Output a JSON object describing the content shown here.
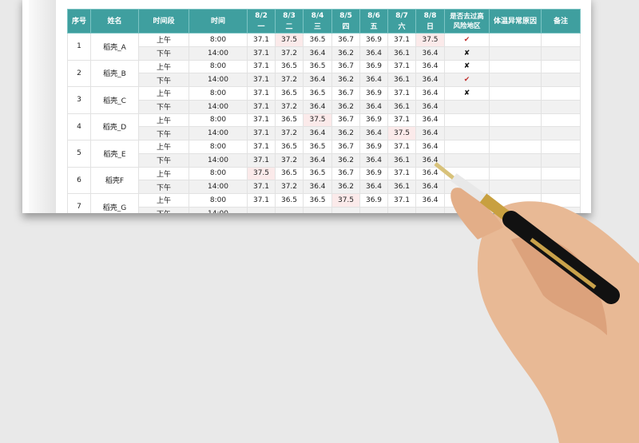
{
  "headers": {
    "no": "序号",
    "name": "姓名",
    "period": "时间段",
    "time": "时间",
    "dates": [
      {
        "date": "8/2",
        "weekday": "一"
      },
      {
        "date": "8/3",
        "weekday": "二"
      },
      {
        "date": "8/4",
        "weekday": "三"
      },
      {
        "date": "8/5",
        "weekday": "四"
      },
      {
        "date": "8/6",
        "weekday": "五"
      },
      {
        "date": "8/7",
        "weekday": "六"
      },
      {
        "date": "8/8",
        "weekday": "日"
      }
    ],
    "risk": "是否去过高风险地区",
    "reason": "体温异常原因",
    "note": "备注"
  },
  "periods": {
    "am": "上午",
    "pm": "下午",
    "am_time": "8:00",
    "pm_time": "14:00"
  },
  "highlight_color": "#fbeaea",
  "header_color": "#3f9f9f",
  "symbols": {
    "yes": "✔",
    "no": "✘"
  },
  "rows": [
    {
      "no": "1",
      "name": "稻壳_A",
      "am": [
        "37.1",
        "37.5",
        "36.5",
        "36.7",
        "36.9",
        "37.1",
        "37.5"
      ],
      "pm": [
        "37.1",
        "37.2",
        "36.4",
        "36.2",
        "36.4",
        "36.1",
        "36.4"
      ],
      "am_risk": "yes",
      "pm_risk": "no"
    },
    {
      "no": "2",
      "name": "稻壳_B",
      "am": [
        "37.1",
        "36.5",
        "36.5",
        "36.7",
        "36.9",
        "37.1",
        "36.4"
      ],
      "pm": [
        "37.1",
        "37.2",
        "36.4",
        "36.2",
        "36.4",
        "36.1",
        "36.4"
      ],
      "am_risk": "no",
      "pm_risk": "yes"
    },
    {
      "no": "3",
      "name": "稻壳_C",
      "am": [
        "37.1",
        "36.5",
        "36.5",
        "36.7",
        "36.9",
        "37.1",
        "36.4"
      ],
      "pm": [
        "37.1",
        "37.2",
        "36.4",
        "36.2",
        "36.4",
        "36.1",
        "36.4"
      ],
      "am_risk": "no",
      "pm_risk": ""
    },
    {
      "no": "4",
      "name": "稻壳_D",
      "am": [
        "37.1",
        "36.5",
        "37.5",
        "36.7",
        "36.9",
        "37.1",
        "36.4"
      ],
      "pm": [
        "37.1",
        "37.2",
        "36.4",
        "36.2",
        "36.4",
        "37.5",
        "36.4"
      ],
      "am_risk": "",
      "pm_risk": ""
    },
    {
      "no": "5",
      "name": "稻壳_E",
      "am": [
        "37.1",
        "36.5",
        "36.5",
        "36.7",
        "36.9",
        "37.1",
        "36.4"
      ],
      "pm": [
        "37.1",
        "37.2",
        "36.4",
        "36.2",
        "36.4",
        "36.1",
        "36.4"
      ],
      "am_risk": "",
      "pm_risk": ""
    },
    {
      "no": "6",
      "name": "稻壳F",
      "am": [
        "37.5",
        "36.5",
        "36.5",
        "36.7",
        "36.9",
        "37.1",
        "36.4"
      ],
      "pm": [
        "37.1",
        "37.2",
        "36.4",
        "36.2",
        "36.4",
        "36.1",
        "36.4"
      ],
      "am_risk": "",
      "pm_risk": ""
    },
    {
      "no": "7",
      "name": "稻壳_G",
      "am": [
        "37.1",
        "36.5",
        "36.5",
        "37.5",
        "36.9",
        "37.1",
        "36.4"
      ],
      "pm": [
        "",
        "",
        "",
        "",
        "",
        "",
        ""
      ],
      "am_risk": "",
      "pm_risk": ""
    }
  ]
}
